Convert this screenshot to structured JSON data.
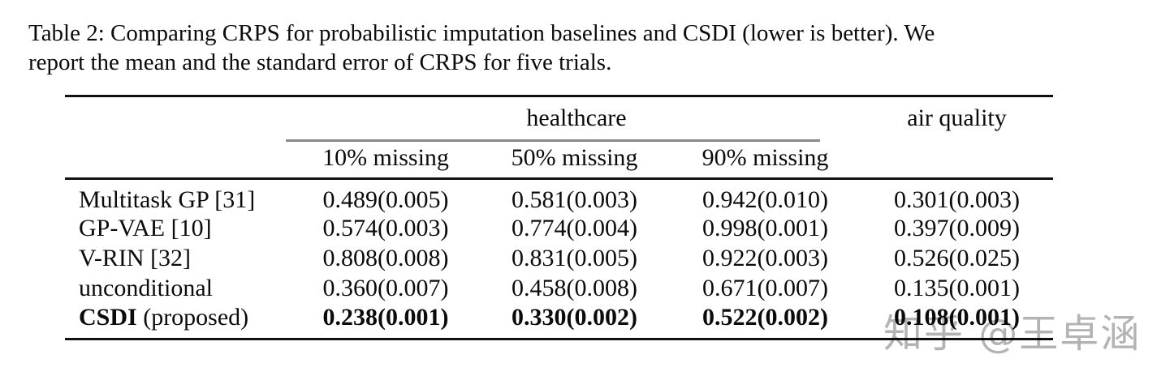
{
  "caption": {
    "line1": "Table 2: Comparing CRPS for probabilistic imputation baselines and CSDI (lower is better). We",
    "line2": "report the mean and the standard error of CRPS for five trials."
  },
  "table": {
    "group_headers": [
      {
        "label": "healthcare",
        "span": 3
      },
      {
        "label": "air quality",
        "span": 1
      }
    ],
    "sub_headers": [
      "10% missing",
      "50% missing",
      "90% missing"
    ],
    "rows": [
      {
        "label_bold": "",
        "label": "Multitask GP [31]",
        "values": [
          "0.489(0.005)",
          "0.581(0.003)",
          "0.942(0.010)",
          "0.301(0.003)"
        ],
        "bold_values": false
      },
      {
        "label_bold": "",
        "label": "GP-VAE [10]",
        "values": [
          "0.574(0.003)",
          "0.774(0.004)",
          "0.998(0.001)",
          "0.397(0.009)"
        ],
        "bold_values": false
      },
      {
        "label_bold": "",
        "label": "V-RIN [32]",
        "values": [
          "0.808(0.008)",
          "0.831(0.005)",
          "0.922(0.003)",
          "0.526(0.025)"
        ],
        "bold_values": false
      },
      {
        "label_bold": "",
        "label": "unconditional",
        "values": [
          "0.360(0.007)",
          "0.458(0.008)",
          "0.671(0.007)",
          "0.135(0.001)"
        ],
        "bold_values": false
      },
      {
        "label_bold": "CSDI",
        "label": " (proposed)",
        "values": [
          "0.238(0.001)",
          "0.330(0.002)",
          "0.522(0.002)",
          "0.108(0.001)"
        ],
        "bold_values": true
      }
    ]
  },
  "watermark": {
    "text": "知乎 @王卓涵"
  },
  "colors": {
    "text": "#0b0b0b",
    "rule": "#101010",
    "cmidrule": "#8a8a8a",
    "watermark": "#b3b3b3"
  }
}
